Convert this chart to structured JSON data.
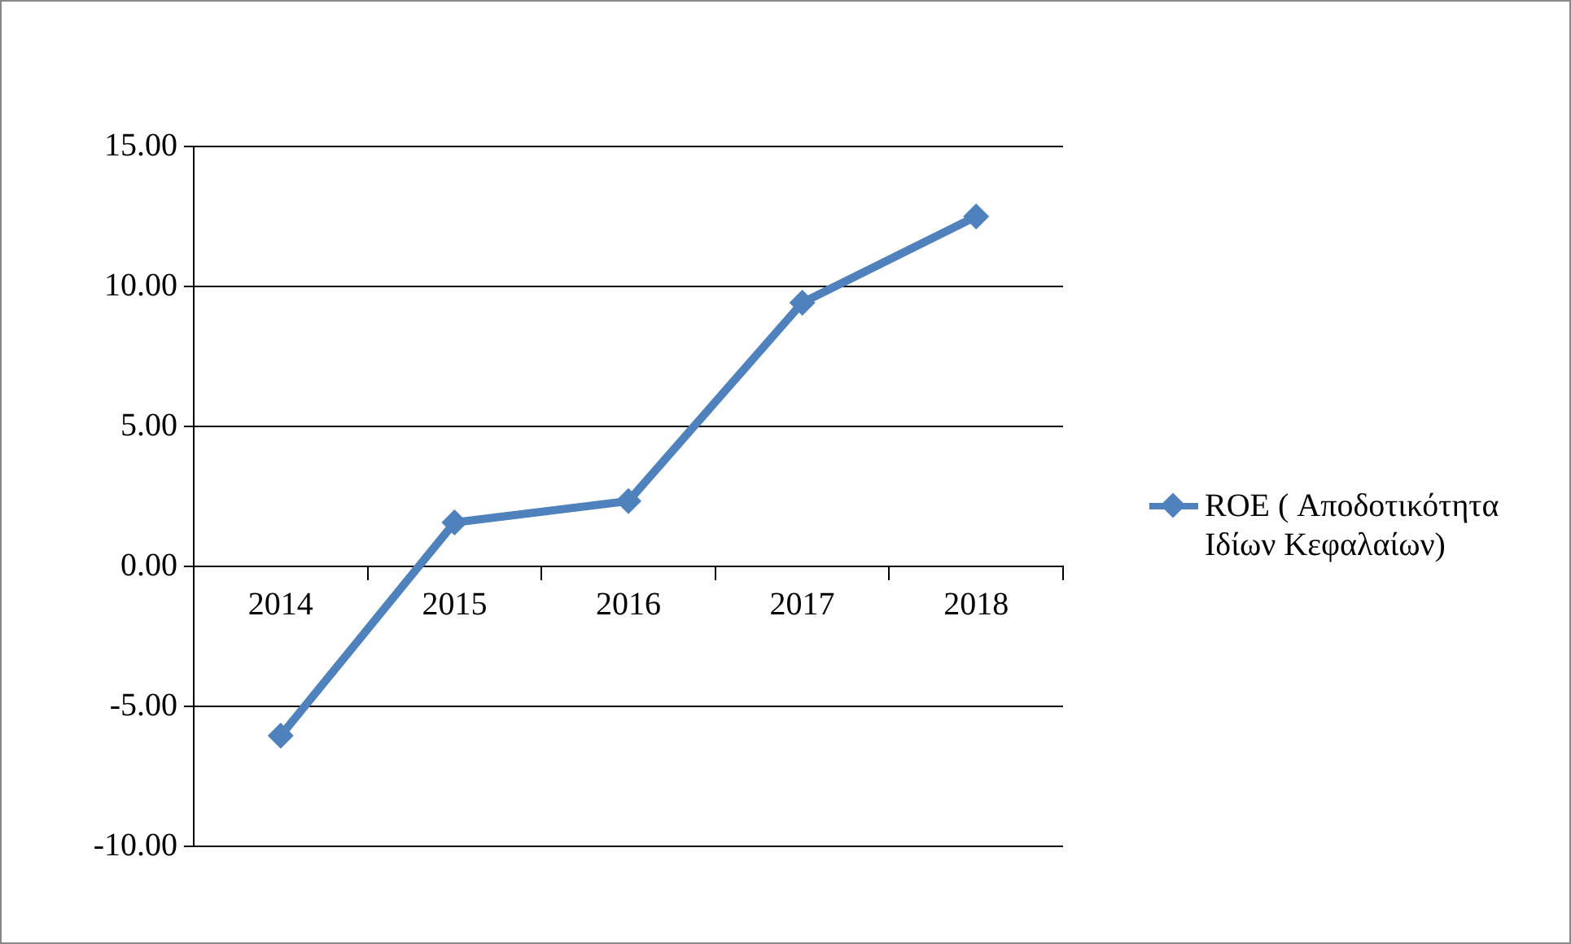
{
  "chart_data": {
    "type": "line",
    "categories": [
      "2014",
      "2015",
      "2016",
      "2017",
      "2018"
    ],
    "series": [
      {
        "name": "ROE ( Αποδοτικότητα Ιδίων Κεφαλαίων)",
        "color": "#4f81bd",
        "values": [
          -6.05,
          1.57,
          2.33,
          9.42,
          12.5
        ]
      }
    ],
    "ylim": [
      -10,
      15
    ],
    "yticks": [
      {
        "value": -10,
        "label": "-10.00"
      },
      {
        "value": -5,
        "label": "-5.00"
      },
      {
        "value": 0,
        "label": "0.00"
      },
      {
        "value": 5,
        "label": "5.00"
      },
      {
        "value": 10,
        "label": "10.00"
      },
      {
        "value": 15,
        "label": "15.00"
      }
    ],
    "grid": "y",
    "legend": "right",
    "marker": "diamond",
    "line_style": "solid"
  }
}
